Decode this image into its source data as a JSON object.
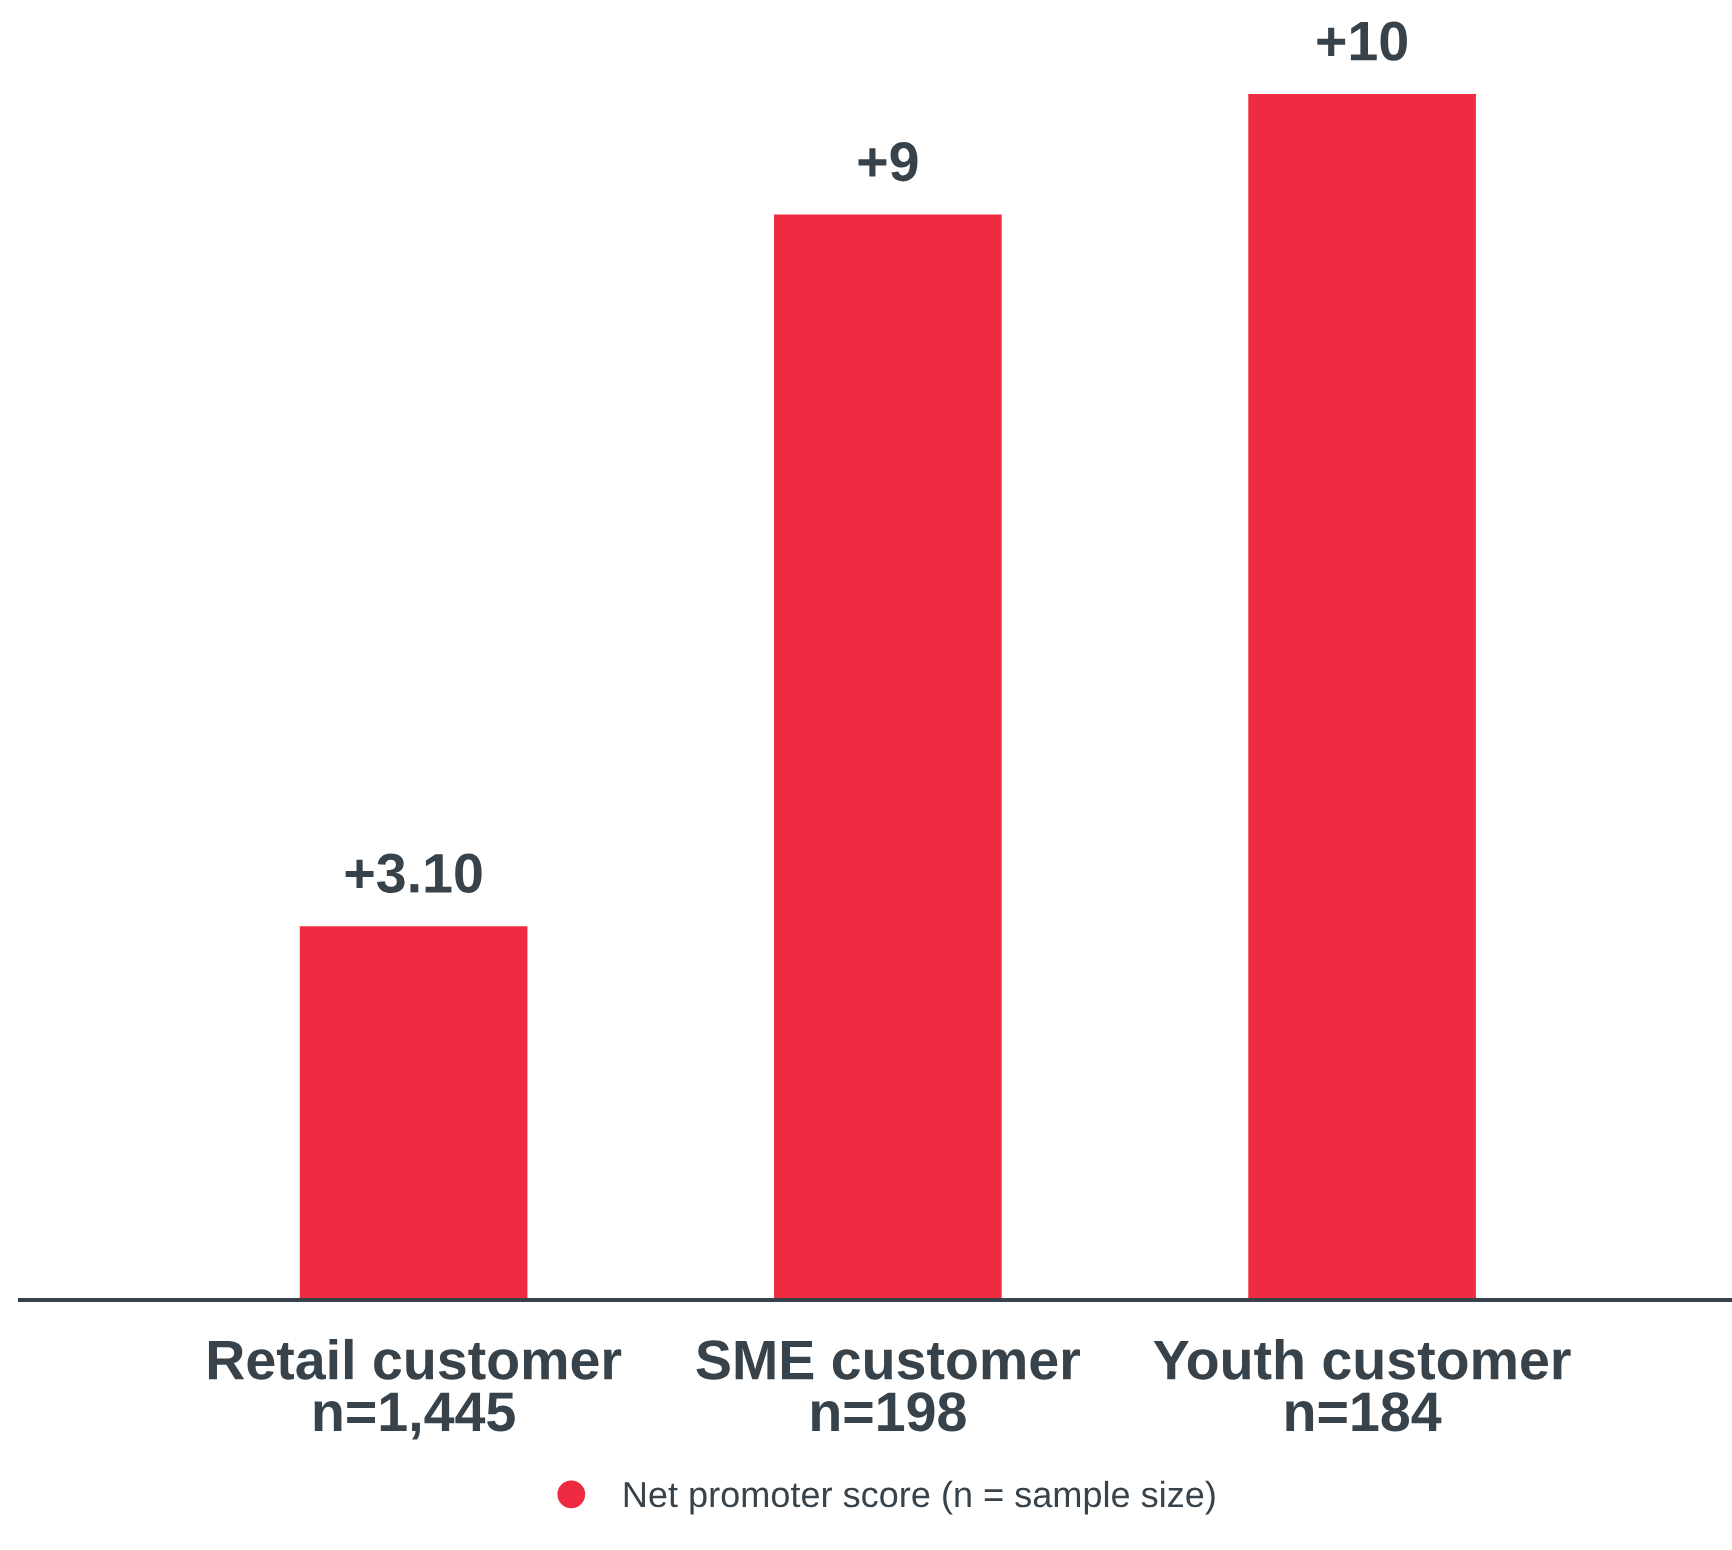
{
  "chart_data": {
    "type": "bar",
    "categories": [
      "Retail customer\nn=1,445",
      "SME customer\nn=198",
      "Youth customer\nn=184"
    ],
    "series": [
      {
        "name": "Net promoter score (n = sample size)",
        "color": "#ee2b41",
        "values": [
          3.1,
          9,
          10
        ],
        "value_labels": [
          "+3.10",
          "+9",
          "+10"
        ]
      }
    ],
    "legend": "bottom",
    "grid": false
  }
}
